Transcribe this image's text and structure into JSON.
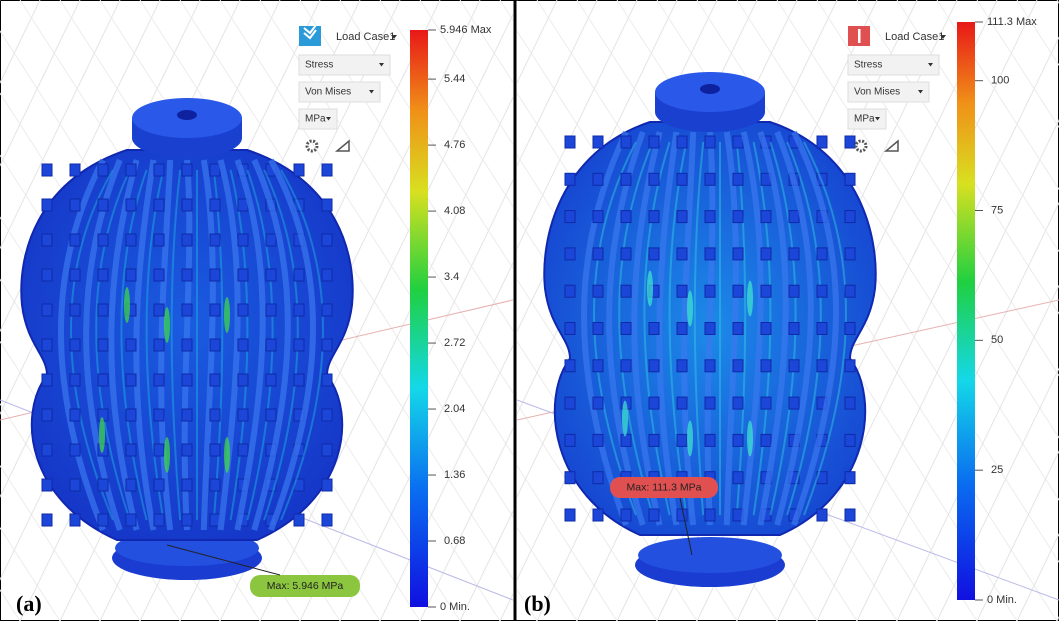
{
  "panels": [
    {
      "label": "(a)",
      "load_case": "Load Case1",
      "result_type": "Stress",
      "criterion": "Von Mises",
      "unit": "MPa",
      "max_callout": "Max: 5.946 MPa",
      "legend": {
        "max": {
          "value": 5.946,
          "label": "5.946 Max"
        },
        "min": {
          "value": 0,
          "label": "0 Min."
        },
        "ticks": [
          0.68,
          1.36,
          2.04,
          2.72,
          3.4,
          4.08,
          4.76,
          5.44
        ]
      }
    },
    {
      "label": "(b)",
      "load_case": "Load Case1",
      "result_type": "Stress",
      "criterion": "Von Mises",
      "unit": "MPa",
      "max_callout": "Max: 111.3 MPa",
      "legend": {
        "max": {
          "value": 111.3,
          "label": "111.3 Max"
        },
        "min": {
          "value": 0,
          "label": "0 Min."
        },
        "ticks": [
          25,
          50,
          75,
          100
        ]
      }
    }
  ]
}
